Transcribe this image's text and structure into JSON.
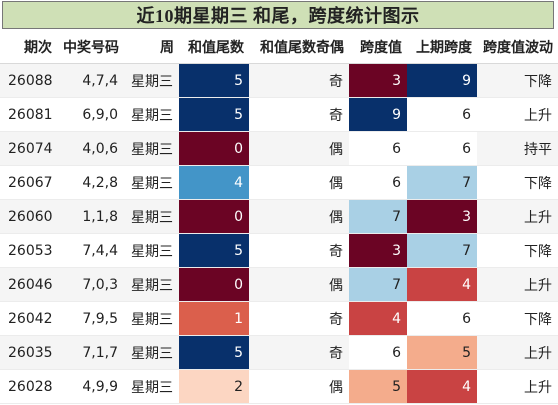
{
  "title": "近10期星期三 和尾，跨度统计图示",
  "columns": [
    "期次",
    "中奖号码",
    "周",
    "和值尾数",
    "和值尾数奇偶",
    "跨度值",
    "上期跨度",
    "跨度值波动"
  ],
  "rows": [
    {
      "period": "26088",
      "numbers": "4,7,4",
      "weekday": "星期三",
      "sum_tail": "5",
      "parity": "奇",
      "span": "3",
      "prev_span": "9",
      "trend": "下降"
    },
    {
      "period": "26081",
      "numbers": "6,9,0",
      "weekday": "星期三",
      "sum_tail": "5",
      "parity": "奇",
      "span": "9",
      "prev_span": "6",
      "trend": "上升"
    },
    {
      "period": "26074",
      "numbers": "4,0,6",
      "weekday": "星期三",
      "sum_tail": "0",
      "parity": "偶",
      "span": "6",
      "prev_span": "6",
      "trend": "持平"
    },
    {
      "period": "26067",
      "numbers": "4,2,8",
      "weekday": "星期三",
      "sum_tail": "4",
      "parity": "偶",
      "span": "6",
      "prev_span": "7",
      "trend": "下降"
    },
    {
      "period": "26060",
      "numbers": "1,1,8",
      "weekday": "星期三",
      "sum_tail": "0",
      "parity": "偶",
      "span": "7",
      "prev_span": "3",
      "trend": "上升"
    },
    {
      "period": "26053",
      "numbers": "7,4,4",
      "weekday": "星期三",
      "sum_tail": "5",
      "parity": "奇",
      "span": "3",
      "prev_span": "7",
      "trend": "下降"
    },
    {
      "period": "26046",
      "numbers": "7,0,3",
      "weekday": "星期三",
      "sum_tail": "0",
      "parity": "偶",
      "span": "7",
      "prev_span": "4",
      "trend": "上升"
    },
    {
      "period": "26042",
      "numbers": "7,9,5",
      "weekday": "星期三",
      "sum_tail": "1",
      "parity": "奇",
      "span": "4",
      "prev_span": "6",
      "trend": "下降"
    },
    {
      "period": "26035",
      "numbers": "7,1,7",
      "weekday": "星期三",
      "sum_tail": "5",
      "parity": "奇",
      "span": "6",
      "prev_span": "5",
      "trend": "上升"
    },
    {
      "period": "26028",
      "numbers": "4,9,9",
      "weekday": "星期三",
      "sum_tail": "2",
      "parity": "偶",
      "span": "5",
      "prev_span": "4",
      "trend": "上升"
    }
  ],
  "colors": {
    "title_bg": "#cfe0b6",
    "row_alt": "#f5f5f5",
    "sum_tail": {
      "0": "#6b0424",
      "1": "#db5f4c",
      "2": "#fcd6c2",
      "4": "#4395c8",
      "5": "#08306b"
    },
    "span": {
      "3": "#6b0424",
      "4": "#c94343",
      "5": "#f4ac8c",
      "6": "#ffffff",
      "7": "#a9d0e5",
      "9": "#08306b"
    }
  }
}
